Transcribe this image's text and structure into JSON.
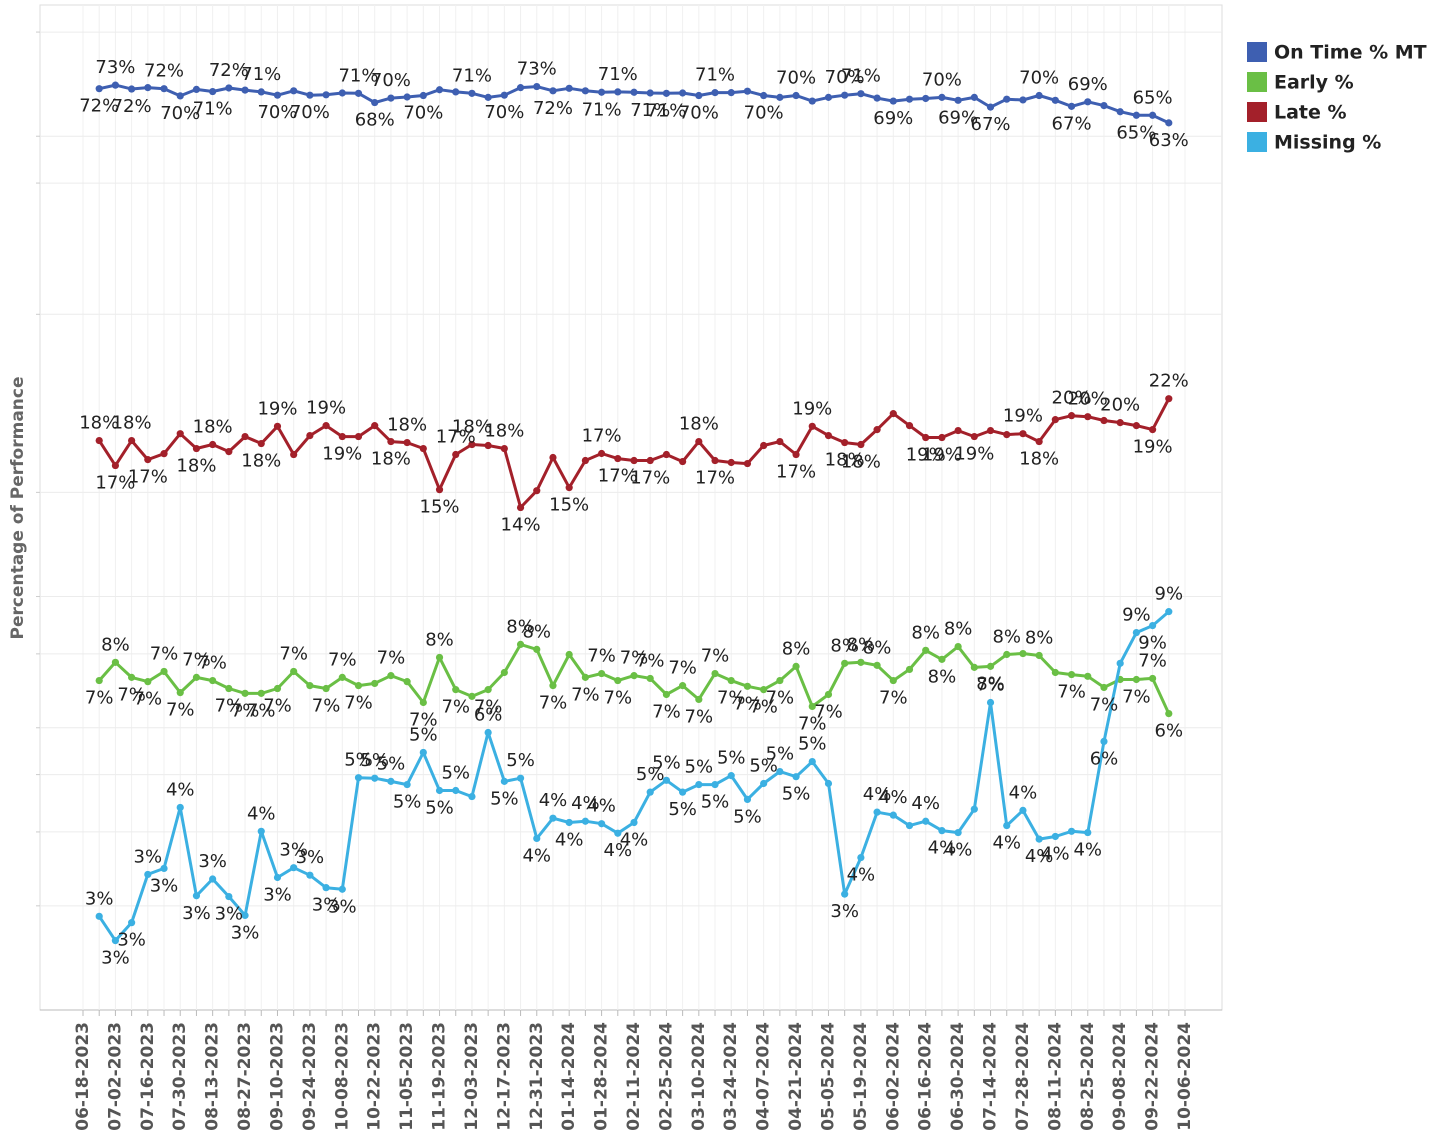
{
  "chart_data": {
    "type": "line",
    "y_label": "Percentage of Performance",
    "ylog": true,
    "ylim": [
      2,
      100
    ],
    "yticks": [
      3,
      4,
      5,
      6,
      8,
      10,
      15,
      30,
      50,
      60,
      90
    ],
    "grid": true,
    "legend_position": "top-right",
    "categories": [
      "06-18-2023",
      null,
      "07-02-2023",
      null,
      "07-16-2023",
      null,
      "07-30-2023",
      null,
      "08-13-2023",
      null,
      "08-27-2023",
      null,
      "09-10-2023",
      null,
      "09-24-2023",
      null,
      "10-08-2023",
      null,
      "10-22-2023",
      null,
      "11-05-2023",
      null,
      "11-19-2023",
      null,
      "12-03-2023",
      null,
      "12-17-2023",
      null,
      "12-31-2023",
      null,
      "01-14-2024",
      null,
      "01-28-2024",
      null,
      "02-11-2024",
      null,
      "02-25-2024",
      null,
      "03-10-2024",
      null,
      "03-24-2024",
      null,
      "04-07-2024",
      null,
      "04-21-2024",
      null,
      "05-05-2024",
      null,
      "05-19-2024",
      null,
      "06-02-2024",
      null,
      "06-16-2024",
      null,
      "06-30-2024",
      null,
      "07-14-2024",
      null,
      "07-28-2024",
      null,
      "08-11-2024",
      null,
      "08-25-2024",
      null,
      "09-08-2024",
      null,
      "09-22-2024",
      null,
      "10-06-2024"
    ],
    "series": [
      {
        "name": "On Time % MT",
        "color": "#3e5fb1",
        "values": [
          null,
          72.2,
          73.2,
          72.1,
          72.5,
          72.2,
          70.2,
          72.0,
          71.4,
          72.4,
          71.8,
          71.3,
          70.4,
          71.6,
          70.4,
          70.5,
          71.0,
          70.9,
          68.4,
          69.6,
          69.9,
          70.3,
          71.9,
          71.3,
          70.9,
          69.8,
          70.4,
          72.5,
          72.8,
          71.6,
          72.3,
          71.6,
          71.2,
          71.3,
          71.2,
          71.0,
          70.9,
          71.0,
          70.3,
          71.1,
          71.1,
          71.5,
          70.3,
          69.8,
          70.3,
          68.8,
          69.8,
          70.4,
          70.8,
          69.6,
          68.8,
          69.3,
          69.5,
          69.8,
          69.0,
          69.8,
          67.2,
          69.3,
          69.1,
          70.3,
          69.0,
          67.4,
          68.6,
          67.6,
          66.0,
          65.1,
          65.1,
          63.2,
          null
        ],
        "value_labels": [
          null,
          "72%",
          "73%",
          "72%",
          null,
          "72%",
          "70%",
          null,
          "71%",
          "72%",
          null,
          "71%",
          "70%",
          null,
          "70%",
          null,
          null,
          "71%",
          "68%",
          "70%",
          null,
          "70%",
          null,
          null,
          "71%",
          null,
          "70%",
          null,
          "73%",
          "72%",
          null,
          null,
          "71%",
          "71%",
          null,
          "71%",
          "71%",
          null,
          "70%",
          "71%",
          null,
          null,
          "70%",
          null,
          "70%",
          null,
          null,
          "70%",
          "71%",
          null,
          "69%",
          null,
          null,
          "70%",
          "69%",
          null,
          "67%",
          null,
          null,
          "70%",
          null,
          "67%",
          "69%",
          null,
          null,
          "65%",
          "65%",
          "63%",
          null
        ]
      },
      {
        "name": "Early %",
        "color": "#6abf45",
        "values": [
          null,
          7.21,
          7.74,
          7.3,
          7.18,
          7.47,
          6.88,
          7.3,
          7.21,
          6.99,
          6.86,
          6.86,
          6.99,
          7.47,
          7.07,
          6.99,
          7.3,
          7.07,
          7.13,
          7.35,
          7.18,
          6.62,
          7.89,
          6.96,
          6.78,
          6.96,
          7.44,
          8.3,
          8.14,
          7.07,
          7.98,
          7.3,
          7.41,
          7.21,
          7.35,
          7.27,
          6.83,
          7.07,
          6.7,
          7.41,
          7.21,
          7.05,
          6.96,
          7.21,
          7.62,
          6.52,
          6.83,
          7.71,
          7.74,
          7.65,
          7.21,
          7.53,
          8.11,
          7.83,
          8.23,
          7.59,
          7.62,
          7.98,
          8.01,
          7.95,
          7.44,
          7.38,
          7.33,
          7.02,
          7.24,
          7.24,
          7.27,
          6.34,
          null
        ],
        "value_labels": [
          null,
          "7%",
          "8%",
          "7%",
          "7%",
          "7%",
          "7%",
          "7%",
          "7%",
          "7%",
          "7%",
          "7%",
          "7%",
          "7%",
          null,
          "7%",
          "7%",
          "7%",
          null,
          "7%",
          null,
          "7%",
          "8%",
          "7%",
          null,
          "7%",
          null,
          "8%",
          "8%",
          "7%",
          null,
          "7%",
          "7%",
          "7%",
          "7%",
          "7%",
          "7%",
          "7%",
          "7%",
          "7%",
          "7%",
          "7%",
          "7%",
          "7%",
          "8%",
          "7%",
          "7%",
          "8%",
          "8%",
          "8%",
          "7%",
          null,
          "8%",
          "8%",
          "8%",
          null,
          "8%",
          "8%",
          null,
          "8%",
          null,
          "7%",
          null,
          "7%",
          null,
          "7%",
          "7%",
          "6%",
          null
        ]
      },
      {
        "name": "Late %",
        "color": "#a3202a",
        "values": [
          null,
          18.35,
          16.65,
          18.35,
          17.04,
          17.44,
          18.85,
          17.79,
          18.07,
          17.58,
          18.64,
          18.14,
          19.4,
          17.38,
          18.71,
          19.45,
          18.64,
          18.64,
          19.45,
          18.28,
          18.21,
          17.79,
          15.16,
          17.38,
          18.07,
          18.0,
          17.79,
          14.14,
          15.1,
          17.18,
          15.28,
          16.98,
          17.45,
          17.11,
          16.98,
          16.98,
          17.38,
          16.91,
          18.28,
          16.98,
          16.85,
          16.78,
          18.0,
          18.28,
          17.38,
          19.4,
          18.71,
          18.21,
          18.07,
          19.15,
          20.38,
          19.45,
          18.57,
          18.57,
          19.08,
          18.64,
          19.08,
          18.78,
          18.85,
          18.28,
          19.91,
          20.22,
          20.14,
          19.84,
          19.68,
          19.45,
          19.15,
          21.6,
          null
        ],
        "value_labels": [
          null,
          "18%",
          "17%",
          "18%",
          "17%",
          null,
          null,
          "18%",
          "18%",
          null,
          null,
          "18%",
          "19%",
          null,
          null,
          "19%",
          "19%",
          null,
          null,
          "18%",
          "18%",
          null,
          "15%",
          "17%",
          "18%",
          null,
          "18%",
          "14%",
          null,
          null,
          "15%",
          null,
          "17%",
          "17%",
          null,
          "17%",
          null,
          null,
          "18%",
          "17%",
          null,
          null,
          null,
          null,
          "17%",
          "19%",
          null,
          "18%",
          "18%",
          null,
          null,
          null,
          "19%",
          "19%",
          null,
          "19%",
          null,
          null,
          "19%",
          "18%",
          null,
          "20%",
          "20%",
          null,
          "20%",
          null,
          "19%",
          "22%",
          null
        ]
      },
      {
        "name": "Missing %",
        "color": "#3bb0e2",
        "values": [
          null,
          2.88,
          2.62,
          2.81,
          3.39,
          3.47,
          4.4,
          3.12,
          3.33,
          3.11,
          2.89,
          4.01,
          3.35,
          3.48,
          3.38,
          3.22,
          3.2,
          4.94,
          4.93,
          4.87,
          4.81,
          5.45,
          4.7,
          4.7,
          4.59,
          5.89,
          4.87,
          4.93,
          3.9,
          4.22,
          4.15,
          4.17,
          4.13,
          3.98,
          4.15,
          4.67,
          4.89,
          4.67,
          4.81,
          4.81,
          4.98,
          4.54,
          4.83,
          5.06,
          4.96,
          5.26,
          4.83,
          3.14,
          3.62,
          4.32,
          4.27,
          4.1,
          4.17,
          4.02,
          3.99,
          4.37,
          6.62,
          4.1,
          4.35,
          3.89,
          3.93,
          4.01,
          3.99,
          5.69,
          7.71,
          8.69,
          8.93,
          9.43,
          null
        ],
        "value_labels": [
          null,
          "3%",
          "3%",
          "3%",
          "3%",
          "3%",
          "4%",
          "3%",
          "3%",
          "3%",
          "3%",
          "4%",
          "3%",
          "3%",
          "3%",
          "3%",
          "3%",
          "5%",
          "5%",
          "5%",
          "5%",
          "5%",
          "5%",
          "5%",
          null,
          "6%",
          "5%",
          "5%",
          "4%",
          "4%",
          "4%",
          "4%",
          "4%",
          "4%",
          "4%",
          "5%",
          "5%",
          "5%",
          "5%",
          "5%",
          "5%",
          "5%",
          "5%",
          "5%",
          "5%",
          "5%",
          null,
          "3%",
          "4%",
          "4%",
          "4%",
          null,
          "4%",
          "4%",
          "4%",
          null,
          "7%",
          "4%",
          "4%",
          "4%",
          "4%",
          null,
          "4%",
          "6%",
          null,
          "9%",
          "9%",
          "9%",
          null
        ]
      }
    ]
  }
}
